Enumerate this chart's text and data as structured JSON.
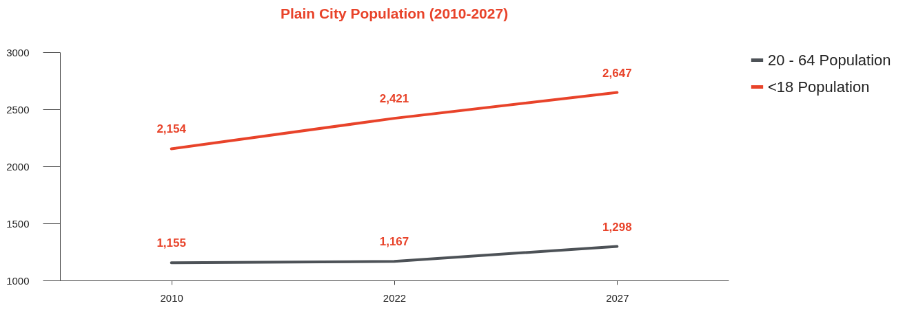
{
  "chart_data": {
    "type": "line",
    "title": "Plain City Population (2010-2027)",
    "categories": [
      "2010",
      "2022",
      "2027"
    ],
    "series": [
      {
        "name": "20 - 64 Population",
        "color": "#4d5257",
        "values": [
          1155,
          1167,
          1298
        ],
        "value_labels": [
          "1,155",
          "1,167",
          "1,298"
        ]
      },
      {
        "name": "<18 Population",
        "color": "#e8432a",
        "values": [
          2154,
          2421,
          2647
        ],
        "value_labels": [
          "2,154",
          "2,421",
          "2,647"
        ]
      }
    ],
    "ylim": [
      1000,
      3000
    ],
    "yticks": [
      1000,
      1500,
      2000,
      2500,
      3000
    ],
    "grid": false,
    "legend": "top right",
    "marker": "none",
    "line_style": "solid"
  }
}
